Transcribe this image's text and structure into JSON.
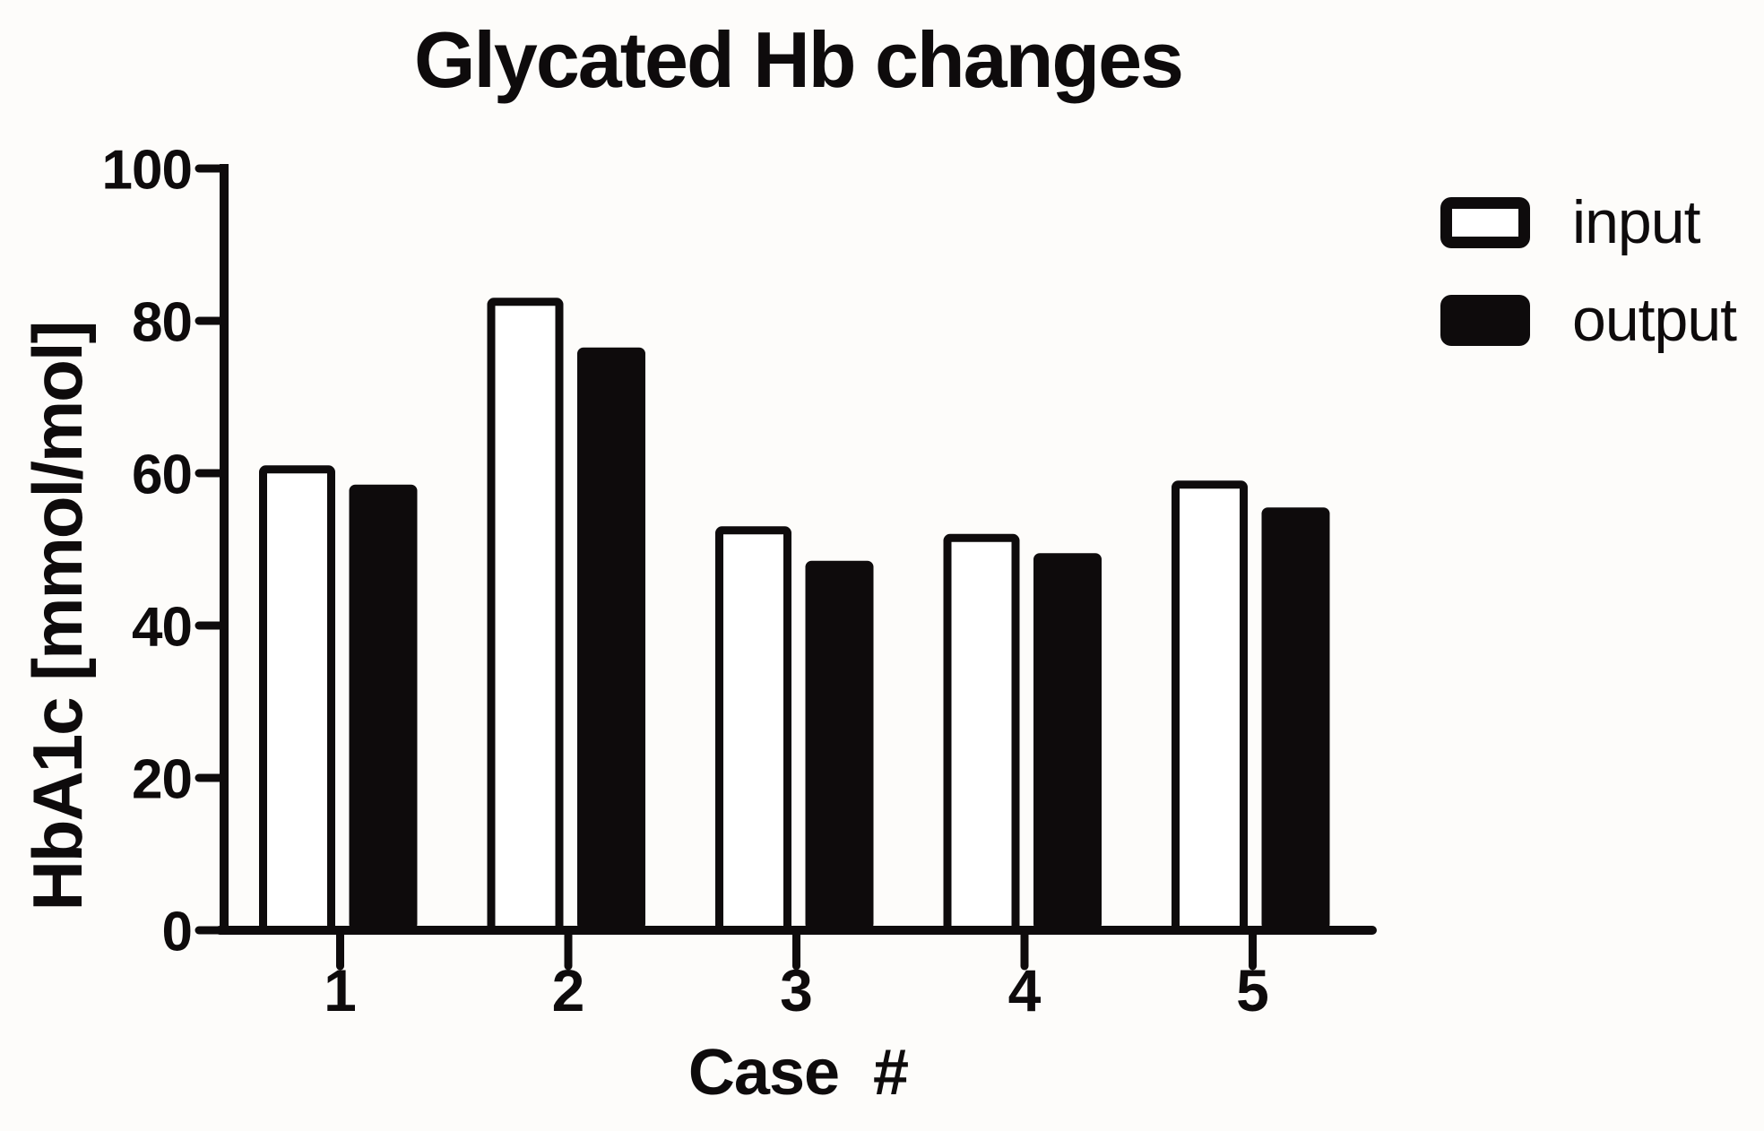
{
  "chart": {
    "title": "Glycated Hb changes",
    "y_axis_label": "HbA1c [mmol/mol]",
    "x_axis_label": "Case  #"
  },
  "legend": {
    "items": [
      {
        "label": "input",
        "swatch": "outline"
      },
      {
        "label": "output",
        "swatch": "filled"
      }
    ]
  },
  "colors": {
    "ink": "#0e0b0c",
    "paper": "#fdfcfa",
    "bar_white": "#ffffff"
  },
  "chart_data": {
    "type": "bar",
    "title": "Glycated Hb changes",
    "xlabel": "Case #",
    "ylabel": "HbA1c [mmol/mol]",
    "categories": [
      "1",
      "2",
      "3",
      "4",
      "5"
    ],
    "series": [
      {
        "name": "input",
        "style": "white-outlined",
        "values": [
          60.5,
          82.5,
          52.5,
          51.5,
          58.5
        ]
      },
      {
        "name": "output",
        "style": "black-filled",
        "values": [
          58.5,
          76.5,
          48.5,
          49.5,
          55.5
        ]
      }
    ],
    "ylim": [
      0,
      100
    ],
    "y_ticks": [
      0,
      20,
      40,
      60,
      80,
      100
    ],
    "grid": false,
    "legend_position": "top-right"
  }
}
